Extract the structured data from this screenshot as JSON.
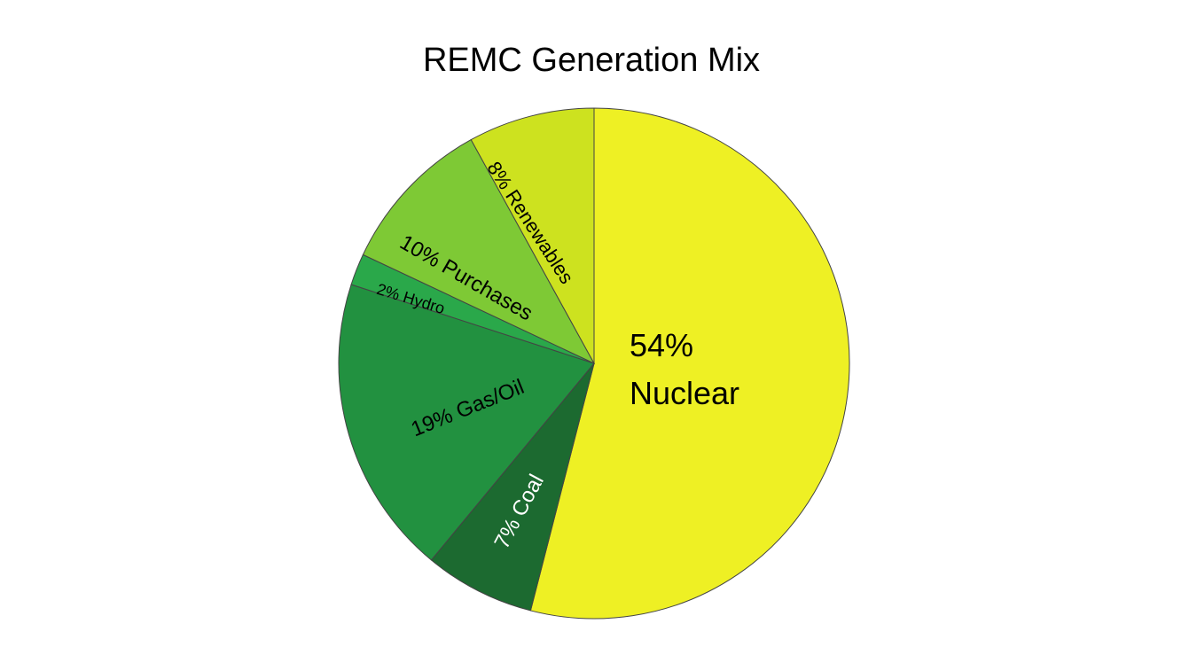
{
  "chart_data": {
    "type": "pie",
    "title": "REMC Generation Mix",
    "categories": [
      "Nuclear",
      "Coal",
      "Gas/Oil",
      "Hydro",
      "Purchases",
      "Renewables"
    ],
    "values": [
      54,
      7,
      19,
      2,
      10,
      8
    ],
    "value_labels": [
      "54%",
      "7%",
      "19%",
      "2%",
      "10%",
      "8%"
    ],
    "colors": [
      "#eef024",
      "#1c6a30",
      "#229140",
      "#2aa84a",
      "#7ec935",
      "#cde21f"
    ]
  }
}
